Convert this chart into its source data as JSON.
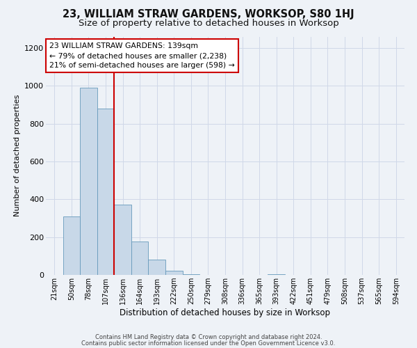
{
  "title": "23, WILLIAM STRAW GARDENS, WORKSOP, S80 1HJ",
  "subtitle": "Size of property relative to detached houses in Worksop",
  "xlabel": "Distribution of detached houses by size in Worksop",
  "ylabel": "Number of detached properties",
  "bin_labels": [
    "21sqm",
    "50sqm",
    "78sqm",
    "107sqm",
    "136sqm",
    "164sqm",
    "193sqm",
    "222sqm",
    "250sqm",
    "279sqm",
    "308sqm",
    "336sqm",
    "365sqm",
    "393sqm",
    "422sqm",
    "451sqm",
    "479sqm",
    "508sqm",
    "537sqm",
    "565sqm",
    "594sqm"
  ],
  "bar_values": [
    0,
    310,
    990,
    880,
    370,
    175,
    82,
    22,
    2,
    0,
    0,
    0,
    0,
    3,
    0,
    0,
    0,
    0,
    0,
    0,
    0
  ],
  "bar_color": "#c8d8e8",
  "bar_edge_color": "#6699bb",
  "property_line_color": "#cc0000",
  "annotation_text": "23 WILLIAM STRAW GARDENS: 139sqm\n← 79% of detached houses are smaller (2,238)\n21% of semi-detached houses are larger (598) →",
  "annotation_box_color": "#ffffff",
  "annotation_box_edge_color": "#cc0000",
  "ylim": [
    0,
    1260
  ],
  "yticks": [
    0,
    200,
    400,
    600,
    800,
    1000,
    1200
  ],
  "grid_color": "#d0d8e8",
  "footer_line1": "Contains HM Land Registry data © Crown copyright and database right 2024.",
  "footer_line2": "Contains public sector information licensed under the Open Government Licence v3.0.",
  "background_color": "#eef2f7",
  "title_fontsize": 10.5,
  "subtitle_fontsize": 9.5,
  "ylabel_fontsize": 8,
  "xlabel_fontsize": 8.5,
  "tick_fontsize": 7,
  "annotation_fontsize": 7.8,
  "footer_fontsize": 6,
  "property_line_index": 3.5
}
